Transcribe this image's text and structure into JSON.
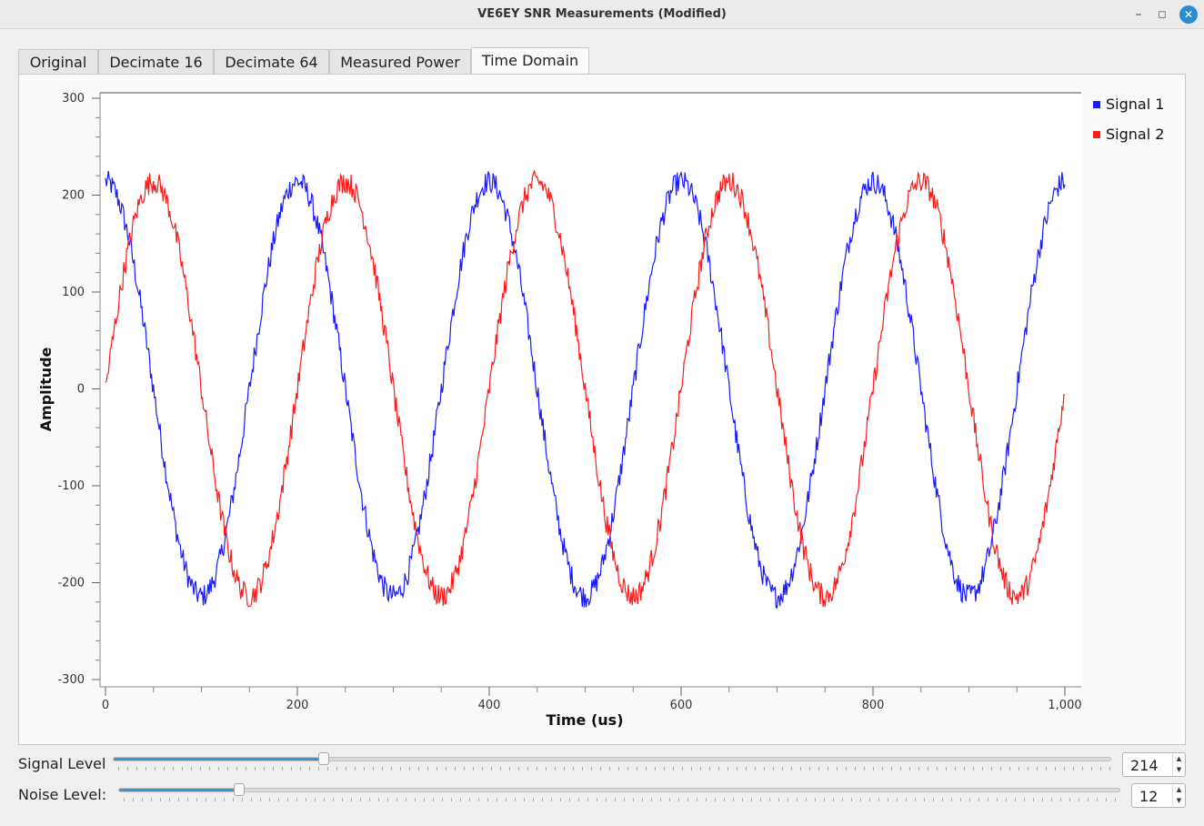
{
  "window": {
    "title": "VE6EY SNR Measurements (Modified)"
  },
  "tabs": [
    {
      "label": "Original"
    },
    {
      "label": "Decimate 16"
    },
    {
      "label": "Decimate 64"
    },
    {
      "label": "Measured Power"
    },
    {
      "label": "Time Domain"
    }
  ],
  "active_tab": "Time Domain",
  "chart_data": {
    "type": "line",
    "xlabel": "Time (us)",
    "ylabel": "Amplitude",
    "xlim": [
      0,
      1000
    ],
    "ylim": [
      -300,
      300
    ],
    "x_ticks": [
      "0",
      "200",
      "400",
      "600",
      "800",
      "1,000"
    ],
    "y_ticks": [
      "300",
      "200",
      "100",
      "0",
      "-100",
      "-200",
      "-300"
    ],
    "legend_position": "top-right",
    "series": [
      {
        "name": "Signal 1",
        "color": "#1a1aff",
        "amplitude": 214,
        "frequency_khz": 5,
        "phase": "cosine",
        "noise": 12
      },
      {
        "name": "Signal 2",
        "color": "#ff1a1a",
        "amplitude": 214,
        "frequency_khz": 5,
        "phase": "sine",
        "noise": 12
      }
    ]
  },
  "controls": {
    "signal_level": {
      "label": "Signal Level",
      "value": "214",
      "fraction": 0.21
    },
    "noise_level": {
      "label": "Noise Level:",
      "value": "12",
      "fraction": 0.12
    }
  },
  "icons": {
    "minimize": "minimize-icon",
    "maximize": "maximize-icon",
    "close": "close-icon"
  }
}
